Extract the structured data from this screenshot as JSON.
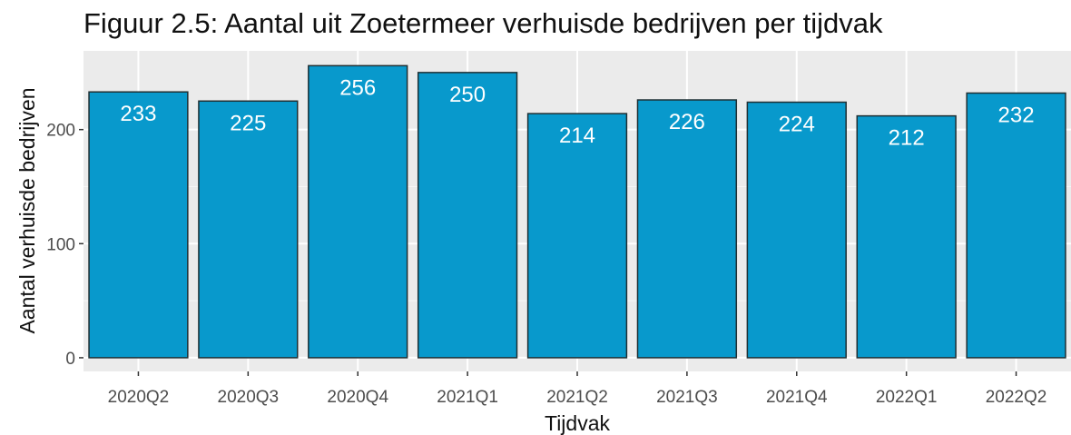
{
  "chart_data": {
    "type": "bar",
    "title": "Figuur 2.5: Aantal uit Zoetermeer verhuisde bedrijven per tijdvak",
    "xlabel": "Tijdvak",
    "ylabel": "Aantal verhuisde bedrijven",
    "categories": [
      "2020Q2",
      "2020Q3",
      "2020Q4",
      "2021Q1",
      "2021Q2",
      "2021Q3",
      "2021Q4",
      "2022Q1",
      "2022Q2"
    ],
    "values": [
      233,
      225,
      256,
      250,
      214,
      226,
      224,
      212,
      232
    ],
    "data_labels": [
      "233",
      "225",
      "256",
      "250",
      "214",
      "226",
      "224",
      "212",
      "232"
    ],
    "yticks": [
      0,
      100,
      200
    ],
    "ytick_labels": [
      "0",
      "100",
      "200"
    ],
    "ylim": [
      -12,
      269
    ],
    "grid": true,
    "legend": "none",
    "colors": {
      "bar_fill": "#0899CC",
      "bar_outline": "#1f2f33",
      "panel_background": "#EBEBEB",
      "grid_major": "#ffffff",
      "label_text": "#ffffff"
    }
  }
}
